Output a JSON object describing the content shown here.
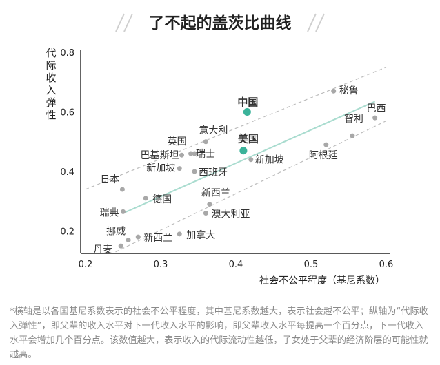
{
  "title": "了不起的盖茨比曲线",
  "footnote": "*横轴是以各国基尼系数表示的社会不公平程度，其中基尼系数越大，表示社会越不公平；纵轴为“代际收入弹性”，即父辈的收入水平对下一代收入水平的影响，即父辈收入水平每提高一个百分点，下一代收入水平会增加几个百分点。该数值越大，表示收入的代际流动性越低，子女处于父辈的经济阶层的可能性就越高。",
  "colors": {
    "accent": "#3bb39a",
    "trend": "#a9dccf",
    "band": "#bcbcbc",
    "point": "#a8a8a8",
    "axis": "#222222",
    "deco": "#cfcfcf"
  },
  "chart_data": {
    "type": "scatter",
    "title": "了不起的盖茨比曲线",
    "xlabel": "社会不公平程度（基尼系数）",
    "ylabel": "代际收入弹性",
    "xlim": [
      0.2,
      0.6
    ],
    "ylim": [
      0.1,
      0.8
    ],
    "xticks": [
      "0.2",
      "0.3",
      "0.4",
      "0.5",
      "0.6"
    ],
    "yticks": [
      "0.2",
      "0.4",
      "0.6",
      "0.8"
    ],
    "trend_line": [
      [
        0.25,
        0.26
      ],
      [
        0.585,
        0.635
      ]
    ],
    "upper_band": [
      [
        0.2,
        0.34
      ],
      [
        0.6,
        0.75
      ]
    ],
    "lower_band": [
      [
        0.24,
        0.13
      ],
      [
        0.6,
        0.57
      ]
    ],
    "points": [
      {
        "label": "丹麦",
        "x": 0.247,
        "y": 0.15,
        "highlight": false
      },
      {
        "label": "挪威",
        "x": 0.257,
        "y": 0.17,
        "highlight": false
      },
      {
        "label": "新西兰",
        "x": 0.27,
        "y": 0.18,
        "highlight": false
      },
      {
        "label": "瑞典",
        "x": 0.25,
        "y": 0.265,
        "highlight": false
      },
      {
        "label": "日本",
        "x": 0.249,
        "y": 0.34,
        "highlight": false
      },
      {
        "label": "德国",
        "x": 0.28,
        "y": 0.31,
        "highlight": false
      },
      {
        "label": "加拿大",
        "x": 0.325,
        "y": 0.19,
        "highlight": false
      },
      {
        "label": "澳大利亚",
        "x": 0.36,
        "y": 0.26,
        "highlight": false
      },
      {
        "label": "新西兰",
        "x": 0.365,
        "y": 0.29,
        "highlight": false
      },
      {
        "label": "新加坡",
        "x": 0.325,
        "y": 0.41,
        "highlight": false
      },
      {
        "label": "西班牙",
        "x": 0.345,
        "y": 0.4,
        "highlight": false
      },
      {
        "label": "巴基斯坦",
        "x": 0.328,
        "y": 0.455,
        "highlight": false
      },
      {
        "label": "英国",
        "x": 0.34,
        "y": 0.46,
        "highlight": false
      },
      {
        "label": "瑞士",
        "x": 0.345,
        "y": 0.46,
        "highlight": false
      },
      {
        "label": "意大利",
        "x": 0.36,
        "y": 0.5,
        "highlight": false
      },
      {
        "label": "中国",
        "x": 0.415,
        "y": 0.6,
        "highlight": true
      },
      {
        "label": "美国",
        "x": 0.41,
        "y": 0.47,
        "highlight": true
      },
      {
        "label": "新加坡",
        "x": 0.42,
        "y": 0.44,
        "highlight": false
      },
      {
        "label": "阿根廷",
        "x": 0.52,
        "y": 0.49,
        "highlight": false
      },
      {
        "label": "秘鲁",
        "x": 0.53,
        "y": 0.67,
        "highlight": false
      },
      {
        "label": "智利",
        "x": 0.555,
        "y": 0.52,
        "highlight": false
      },
      {
        "label": "巴西",
        "x": 0.585,
        "y": 0.58,
        "highlight": false
      }
    ],
    "grid": false,
    "legend": "none"
  }
}
